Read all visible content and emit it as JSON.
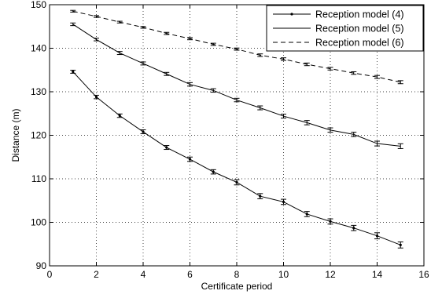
{
  "chart_data": {
    "type": "line",
    "title": "",
    "xlabel": "Certificate period",
    "ylabel": "Distance (m)",
    "xlim": [
      0,
      16
    ],
    "ylim": [
      90,
      150
    ],
    "xticks": [
      0,
      2,
      4,
      6,
      8,
      10,
      12,
      14,
      16
    ],
    "yticks": [
      90,
      100,
      110,
      120,
      130,
      140,
      150
    ],
    "grid": true,
    "grid_style": "dotted",
    "legend_position": "top-right",
    "x": [
      1,
      2,
      3,
      4,
      5,
      6,
      7,
      8,
      9,
      10,
      11,
      12,
      13,
      14,
      15
    ],
    "series": [
      {
        "name": "Reception model (4)",
        "style": "solid-dot",
        "color": "#000000",
        "values": [
          134.6,
          128.8,
          124.5,
          120.8,
          117.2,
          114.5,
          111.6,
          109.2,
          106.0,
          104.7,
          101.9,
          100.2,
          98.7,
          96.9,
          94.8
        ],
        "errors": [
          0.35,
          0.4,
          0.4,
          0.45,
          0.45,
          0.5,
          0.5,
          0.6,
          0.6,
          0.6,
          0.6,
          0.6,
          0.6,
          0.7,
          0.7
        ]
      },
      {
        "name": "Reception model (5)",
        "style": "solid",
        "color": "#000000",
        "values": [
          145.5,
          142.0,
          138.9,
          136.5,
          134.1,
          131.7,
          130.3,
          128.1,
          126.3,
          124.4,
          122.9,
          121.2,
          120.2,
          118.1,
          117.5
        ],
        "errors": [
          0.3,
          0.3,
          0.35,
          0.35,
          0.35,
          0.4,
          0.4,
          0.4,
          0.45,
          0.45,
          0.5,
          0.5,
          0.5,
          0.55,
          0.55
        ]
      },
      {
        "name": "Reception model (6)",
        "style": "dashed",
        "color": "#000000",
        "values": [
          148.5,
          147.3,
          146.0,
          144.8,
          143.4,
          142.2,
          140.9,
          139.8,
          138.4,
          137.5,
          136.3,
          135.3,
          134.3,
          133.4,
          132.2
        ],
        "errors": [
          0.2,
          0.2,
          0.2,
          0.2,
          0.25,
          0.25,
          0.25,
          0.25,
          0.3,
          0.3,
          0.3,
          0.3,
          0.3,
          0.35,
          0.35
        ]
      }
    ]
  }
}
